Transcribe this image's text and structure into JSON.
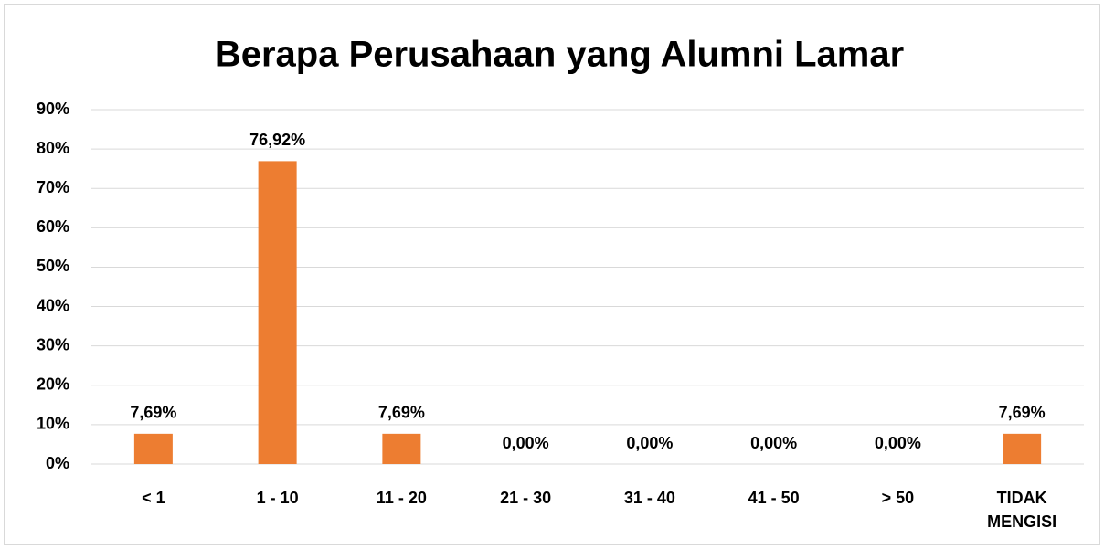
{
  "chart_data": {
    "type": "bar",
    "title": "Berapa Perusahaan yang Alumni Lamar",
    "categories": [
      "< 1",
      "1 - 10",
      "11 - 20",
      "21 - 30",
      "31 - 40",
      "41 - 50",
      "> 50",
      "TIDAK MENGISI"
    ],
    "values": [
      7.69,
      76.92,
      7.69,
      0,
      0,
      0,
      0,
      7.69
    ],
    "value_labels": [
      "7,69%",
      "76,92%",
      "7,69%",
      "0,00%",
      "0,00%",
      "0,00%",
      "0,00%",
      "7,69%"
    ],
    "color": "#ED7D31",
    "ylim": [
      0,
      90
    ],
    "yticks": [
      {
        "value": 0,
        "label": "0%"
      },
      {
        "value": 10,
        "label": "10%"
      },
      {
        "value": 20,
        "label": "20%"
      },
      {
        "value": 30,
        "label": "30%"
      },
      {
        "value": 40,
        "label": "40%"
      },
      {
        "value": 50,
        "label": "50%"
      },
      {
        "value": 60,
        "label": "60%"
      },
      {
        "value": 70,
        "label": "70%"
      },
      {
        "value": 80,
        "label": "80%"
      },
      {
        "value": 90,
        "label": "90%"
      }
    ],
    "grid": true
  }
}
